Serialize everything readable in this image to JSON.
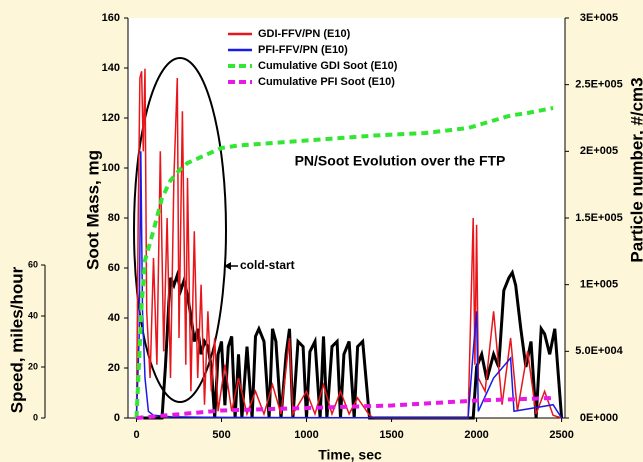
{
  "chart_data": {
    "type": "line",
    "y_label": "Soot Mass, mg",
    "y2_label": "Particle number, #/cm3",
    "y3_label": "Speed, miles/hour",
    "x_label": "Time, sec",
    "annotations": [
      "PN/Soot Evolution over the FTP",
      "cold-start"
    ],
    "xlim": [
      -50,
      2520
    ],
    "xticks": [
      0,
      500,
      1000,
      1500,
      2000,
      2500
    ],
    "ylim": [
      0,
      160
    ],
    "yticks": [
      0,
      20,
      40,
      60,
      80,
      100,
      120,
      140,
      160
    ],
    "y2lim": [
      0,
      300000
    ],
    "y2ticks": [
      {
        "value": 0,
        "label": "0E+000"
      },
      {
        "value": 50000,
        "label": "5.0E+004"
      },
      {
        "value": 100000,
        "label": "1E+005"
      },
      {
        "value": 150000,
        "label": "1.5E+005"
      },
      {
        "value": 200000,
        "label": "2E+005"
      },
      {
        "value": 250000,
        "label": "2.5E+005"
      },
      {
        "value": 300000,
        "label": "3E+005"
      }
    ],
    "y3lim": [
      0,
      60
    ],
    "y3ticks": [
      0,
      20,
      40,
      60
    ],
    "series": [
      {
        "name": "GDI-FFV/PN (E10)",
        "color": "#e8161b",
        "axis": "y2",
        "style": "solid",
        "x": [
          0,
          10,
          20,
          30,
          40,
          50,
          60,
          80,
          100,
          120,
          140,
          160,
          180,
          200,
          220,
          240,
          250,
          270,
          290,
          300,
          320,
          340,
          360,
          380,
          400,
          420,
          440,
          460,
          480,
          520,
          560,
          600,
          650,
          700,
          750,
          800,
          850,
          900,
          920,
          1000,
          1050,
          1100,
          1150,
          1200,
          1250,
          1300,
          1370,
          1400,
          1950,
          1980,
          1990,
          2000,
          2010,
          2050,
          2100,
          2150,
          2200,
          2240,
          2300,
          2350,
          2400,
          2450,
          2500
        ],
        "values": [
          0,
          150000,
          255000,
          260000,
          200000,
          262000,
          80000,
          30000,
          120000,
          40000,
          200000,
          50000,
          150000,
          30000,
          180000,
          255000,
          60000,
          230000,
          40000,
          180000,
          20000,
          140000,
          30000,
          100000,
          10000,
          80000,
          20000,
          60000,
          5000,
          40000,
          5000,
          30000,
          3000,
          20000,
          3000,
          25000,
          3000,
          60000,
          3000,
          20000,
          3000,
          25000,
          3000,
          20000,
          3000,
          15000,
          2000,
          0,
          0,
          150000,
          40000,
          145000,
          30000,
          20000,
          80000,
          10000,
          60000,
          5000,
          50000,
          3000,
          20000,
          2000,
          0
        ]
      },
      {
        "name": "PFI-FFV/PN (E10)",
        "color": "#1a1ae6",
        "axis": "y2",
        "style": "solid",
        "x": [
          0,
          15,
          25,
          35,
          50,
          70,
          100,
          200,
          400,
          1000,
          1950,
          1980,
          2000,
          2010,
          2100,
          2200,
          2220,
          2450,
          2500
        ],
        "values": [
          0,
          60000,
          200000,
          80000,
          30000,
          5000,
          2000,
          1000,
          500,
          300,
          0,
          50000,
          80000,
          5000,
          30000,
          45000,
          5000,
          10000,
          0
        ]
      },
      {
        "name": "Cumulative GDI Soot (E10)",
        "color": "#33e633",
        "axis": "y",
        "style": "dashed",
        "x": [
          0,
          30,
          50,
          100,
          150,
          200,
          250,
          300,
          400,
          500,
          600,
          800,
          1000,
          1200,
          1400,
          1700,
          1950,
          2000,
          2100,
          2200,
          2300,
          2450
        ],
        "values": [
          0,
          45,
          63,
          75,
          88,
          95,
          99,
          102,
          105,
          108,
          109,
          110,
          111,
          112,
          113,
          114,
          116,
          117,
          119,
          121,
          122,
          124
        ]
      },
      {
        "color": "#e619e6",
        "name": "Cumulative PFI Soot (E10)",
        "axis": "y",
        "style": "dashed",
        "x": [
          0,
          500,
          1000,
          1500,
          2000,
          2450
        ],
        "values": [
          0,
          3,
          4,
          5,
          7,
          8
        ]
      },
      {
        "color": "#000000",
        "axis": "y3",
        "style": "solid",
        "x": [
          0,
          150,
          170,
          190,
          200,
          220,
          240,
          260,
          280,
          300,
          320,
          340,
          360,
          380,
          400,
          420,
          440,
          460,
          480,
          500,
          520,
          540,
          560,
          580,
          600,
          620,
          650,
          680,
          700,
          720,
          750,
          780,
          800,
          820,
          850,
          880,
          900,
          920,
          950,
          980,
          1000,
          1020,
          1050,
          1080,
          1100,
          1120,
          1150,
          1180,
          1200,
          1220,
          1250,
          1280,
          1300,
          1330,
          1370,
          1400,
          1950,
          1980,
          2000,
          2030,
          2060,
          2100,
          2130,
          2160,
          2190,
          2210,
          2230,
          2260,
          2290,
          2320,
          2350,
          2380,
          2400,
          2430,
          2460,
          2500
        ],
        "values": [
          0,
          0,
          20,
          45,
          55,
          52,
          56,
          50,
          54,
          48,
          40,
          30,
          35,
          25,
          30,
          28,
          20,
          0,
          25,
          30,
          5,
          28,
          32,
          0,
          25,
          0,
          28,
          0,
          32,
          35,
          30,
          0,
          35,
          30,
          0,
          25,
          35,
          0,
          30,
          28,
          0,
          26,
          30,
          0,
          32,
          0,
          28,
          30,
          0,
          25,
          30,
          0,
          28,
          30,
          0,
          0,
          0,
          0,
          20,
          25,
          15,
          25,
          20,
          50,
          55,
          57,
          52,
          35,
          20,
          30,
          0,
          35,
          33,
          25,
          35,
          0
        ]
      }
    ]
  }
}
